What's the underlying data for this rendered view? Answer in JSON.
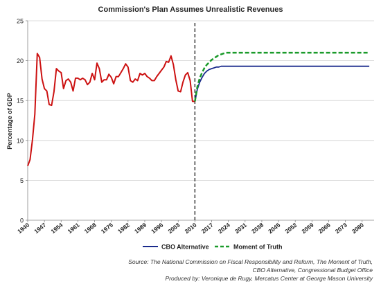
{
  "chart_data": {
    "type": "line",
    "title": "Commission's Plan Assumes Unrealistic Revenues",
    "xlabel": "",
    "ylabel": "Percentage of GDP",
    "ylim": [
      0,
      25
    ],
    "xlim": [
      1940,
      2085
    ],
    "y_ticks": [
      "0",
      "5",
      "10",
      "15",
      "20",
      "25"
    ],
    "x_ticks": [
      "1940",
      "1947",
      "1954",
      "1961",
      "1968",
      "1975",
      "1982",
      "1989",
      "1996",
      "2003",
      "2010",
      "2017",
      "2024",
      "2031",
      "2038",
      "2045",
      "2052",
      "2059",
      "2066",
      "2073",
      "2080"
    ],
    "grid": "horizontal",
    "legend_position": "bottom",
    "vertical_marker_year": 2010,
    "historical": {
      "color": "#cc1111",
      "x": [
        1940,
        1941,
        1942,
        1943,
        1944,
        1945,
        1946,
        1947,
        1948,
        1949,
        1950,
        1951,
        1952,
        1953,
        1954,
        1955,
        1956,
        1957,
        1958,
        1959,
        1960,
        1961,
        1962,
        1963,
        1964,
        1965,
        1966,
        1967,
        1968,
        1969,
        1970,
        1971,
        1972,
        1973,
        1974,
        1975,
        1976,
        1977,
        1978,
        1979,
        1980,
        1981,
        1982,
        1983,
        1984,
        1985,
        1986,
        1987,
        1988,
        1989,
        1990,
        1991,
        1992,
        1993,
        1994,
        1995,
        1996,
        1997,
        1998,
        1999,
        2000,
        2001,
        2002,
        2003,
        2004,
        2005,
        2006,
        2007,
        2008,
        2009,
        2010
      ],
      "y": [
        6.8,
        7.6,
        10.1,
        13.3,
        20.9,
        20.4,
        17.7,
        16.5,
        16.2,
        14.5,
        14.4,
        16.1,
        19.0,
        18.7,
        18.5,
        16.5,
        17.5,
        17.7,
        17.3,
        16.2,
        17.8,
        17.8,
        17.6,
        17.8,
        17.6,
        17.0,
        17.3,
        18.4,
        17.6,
        19.7,
        19.0,
        17.3,
        17.6,
        17.6,
        18.3,
        17.9,
        17.1,
        18.0,
        18.0,
        18.5,
        19.0,
        19.6,
        19.2,
        17.5,
        17.3,
        17.7,
        17.5,
        18.4,
        18.2,
        18.4,
        18.0,
        17.8,
        17.5,
        17.5,
        18.0,
        18.4,
        18.8,
        19.2,
        19.9,
        19.8,
        20.6,
        19.5,
        17.6,
        16.2,
        16.1,
        17.3,
        18.2,
        18.5,
        17.5,
        14.9,
        14.9
      ]
    },
    "series": [
      {
        "name": "CBO Alternative",
        "color": "#1a2a8c",
        "style": "solid",
        "x": [
          2010,
          2011,
          2012,
          2013,
          2014,
          2015,
          2016,
          2017,
          2018,
          2019,
          2020,
          2021,
          2022,
          2023,
          2024,
          2030,
          2040,
          2050,
          2060,
          2070,
          2083
        ],
        "y": [
          14.9,
          16.4,
          17.3,
          17.9,
          18.4,
          18.7,
          18.9,
          19.0,
          19.1,
          19.2,
          19.2,
          19.3,
          19.3,
          19.3,
          19.3,
          19.3,
          19.3,
          19.3,
          19.3,
          19.3,
          19.3
        ]
      },
      {
        "name": "Moment of Truth",
        "color": "#1a9a2a",
        "style": "dashed",
        "x": [
          2010,
          2011,
          2012,
          2013,
          2014,
          2015,
          2016,
          2017,
          2018,
          2019,
          2020,
          2021,
          2022,
          2023,
          2024,
          2030,
          2040,
          2050,
          2060,
          2070,
          2083
        ],
        "y": [
          14.9,
          16.7,
          17.8,
          18.5,
          19.1,
          19.5,
          19.8,
          20.1,
          20.3,
          20.5,
          20.7,
          20.8,
          20.9,
          21.0,
          21.0,
          21.0,
          21.0,
          21.0,
          21.0,
          21.0,
          21.0
        ]
      }
    ]
  },
  "source": {
    "line1": "Source:  The National Commission on Fiscal Responsibility and Reform, The Moment of Truth,",
    "line2": "CBO Alternative, Congressional Budget Office",
    "line3": "Produced by: Veronique de Rugy, Mercatus Center at George Mason University"
  }
}
